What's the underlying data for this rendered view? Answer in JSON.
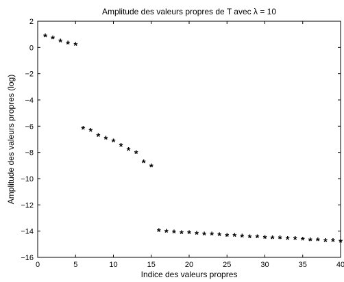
{
  "chart_data": {
    "type": "scatter",
    "title": "Amplitude des valeurs propres de T avec λ = 10",
    "xlabel": "Indice des valeurs propres",
    "ylabel": "Amplitude des valeurs propres (log)",
    "xlim": [
      0,
      40
    ],
    "ylim": [
      -16,
      2
    ],
    "x_ticks": [
      "0",
      "5",
      "10",
      "15",
      "20",
      "25",
      "30",
      "35",
      "40"
    ],
    "y_ticks": [
      "2",
      "0",
      "−2",
      "−4",
      "−6",
      "−8",
      "−10",
      "−12",
      "−14",
      "−16"
    ],
    "x_tick_values": [
      0,
      5,
      10,
      15,
      20,
      25,
      30,
      35,
      40
    ],
    "y_tick_values": [
      2,
      0,
      -2,
      -4,
      -6,
      -8,
      -10,
      -12,
      -14,
      -16
    ],
    "marker": "*",
    "grid": false,
    "colors": {
      "default": "#1f3fe0",
      "highlight": "#e0102a"
    },
    "x": [
      1,
      2,
      3,
      4,
      5,
      6,
      7,
      8,
      9,
      10,
      11,
      12,
      13,
      14,
      15,
      16,
      17,
      18,
      19,
      20,
      21,
      22,
      23,
      24,
      25,
      26,
      27,
      28,
      29,
      30,
      31,
      32,
      33,
      34,
      35,
      36,
      37,
      38,
      39,
      40
    ],
    "y": [
      0.85,
      0.7,
      0.45,
      0.3,
      0.2,
      -6.2,
      -6.35,
      -6.75,
      -6.95,
      -7.15,
      -7.5,
      -7.8,
      -8.05,
      -8.75,
      -9.05,
      -14.0,
      -14.05,
      -14.1,
      -14.15,
      -14.15,
      -14.2,
      -14.25,
      -14.25,
      -14.3,
      -14.35,
      -14.35,
      -14.4,
      -14.45,
      -14.45,
      -14.5,
      -14.55,
      -14.55,
      -14.6,
      -14.6,
      -14.65,
      -14.7,
      -14.7,
      -14.75,
      -14.75,
      -14.8
    ],
    "highlight_index": 4
  }
}
